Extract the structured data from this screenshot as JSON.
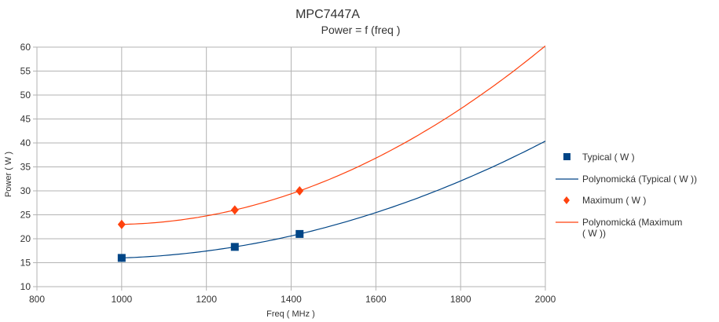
{
  "chart_data": {
    "type": "scatter",
    "title": "MPC7447A",
    "subtitle": "Power = f (freq )",
    "xlabel": "Freq ( MHz )",
    "ylabel": "Power ( W )",
    "xlim": [
      800,
      2000
    ],
    "ylim": [
      10,
      60
    ],
    "xticks": [
      800,
      1000,
      1200,
      1400,
      1600,
      1800,
      2000
    ],
    "yticks": [
      10,
      15,
      20,
      25,
      30,
      35,
      40,
      45,
      50,
      55,
      60
    ],
    "grid": true,
    "legend_position": "right",
    "series": [
      {
        "name": "Typical ( W )",
        "marker": "square",
        "color": "#004586",
        "x": [
          1000,
          1267,
          1420
        ],
        "y": [
          16,
          18.3,
          21
        ]
      },
      {
        "name": "Maximum ( W )",
        "marker": "diamond",
        "color": "#ff420e",
        "x": [
          1000,
          1267,
          1420
        ],
        "y": [
          23,
          26,
          30
        ]
      }
    ],
    "trendlines": [
      {
        "name": "Polynomická (Typical ( W ))",
        "type": "polynomial",
        "degree": 2,
        "of": "Typical ( W )",
        "color": "#004586",
        "x_range": [
          1000,
          2000
        ]
      },
      {
        "name": "Polynomická (Maximum ( W ))",
        "type": "polynomial",
        "degree": 2,
        "of": "Maximum ( W )",
        "color": "#ff420e",
        "x_range": [
          1000,
          2000
        ]
      }
    ]
  }
}
